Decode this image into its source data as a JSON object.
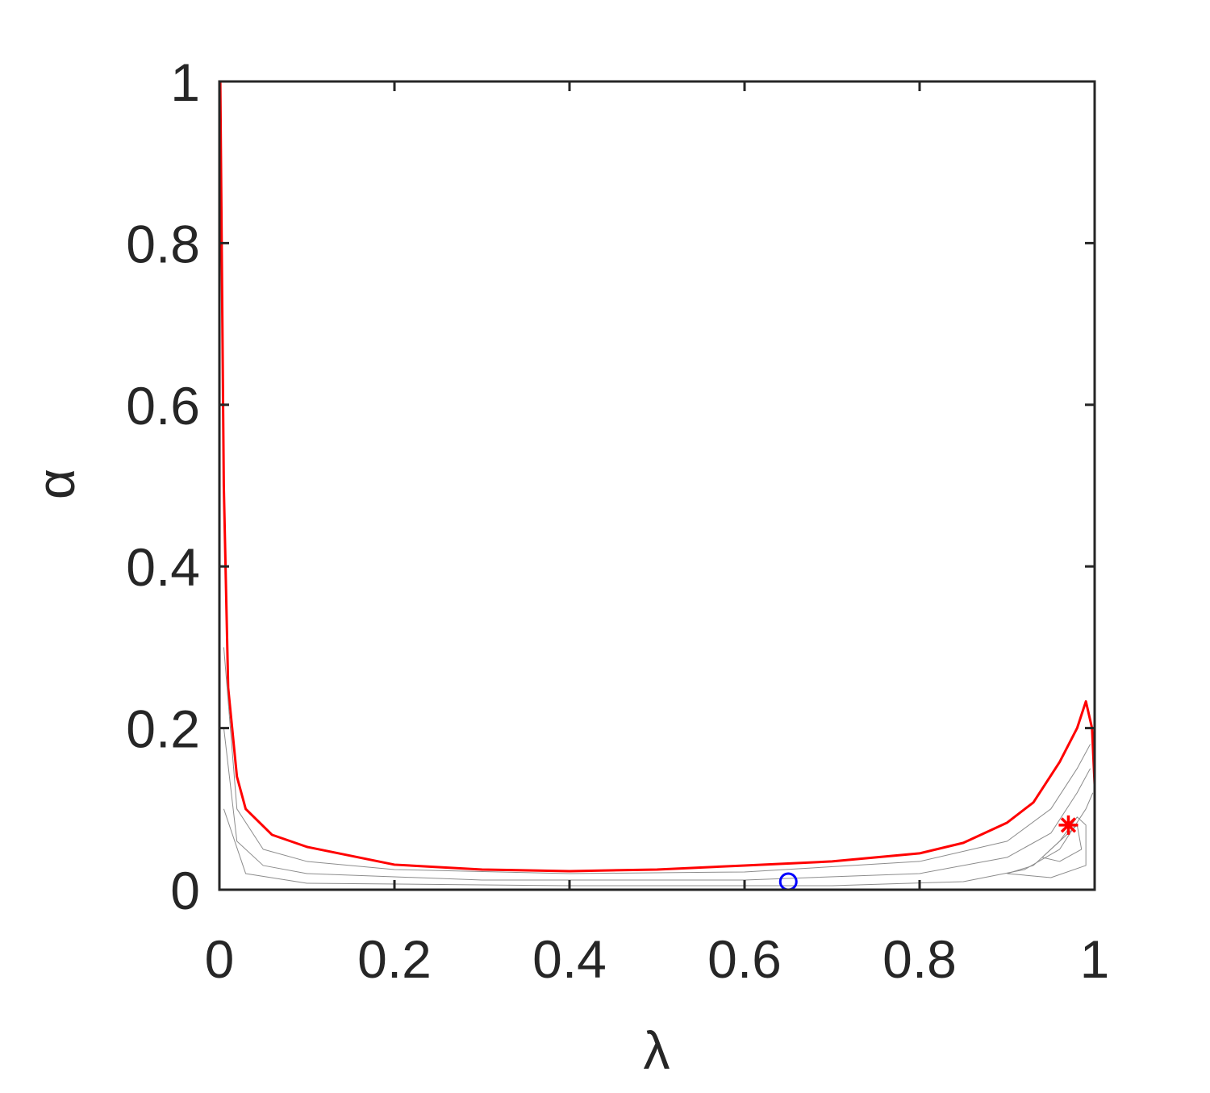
{
  "chart_data": {
    "type": "line",
    "xlabel": "λ",
    "ylabel": "α",
    "xlim": [
      0,
      1
    ],
    "ylim": [
      0,
      1
    ],
    "xticks": [
      0,
      0.2,
      0.4,
      0.6,
      0.8,
      1
    ],
    "yticks": [
      0,
      0.2,
      0.4,
      0.6,
      0.8,
      1
    ],
    "grid": false,
    "series": [
      {
        "color": "#ff0000",
        "width": 3,
        "x": [
          0.001,
          0.005,
          0.01,
          0.02,
          0.03,
          0.06,
          0.1,
          0.2,
          0.3,
          0.4,
          0.5,
          0.6,
          0.7,
          0.8,
          0.85,
          0.9,
          0.93,
          0.96,
          0.98,
          0.99,
          0.997,
          1.0
        ],
        "values": [
          1.0,
          0.5,
          0.25,
          0.14,
          0.1,
          0.068,
          0.053,
          0.031,
          0.025,
          0.023,
          0.025,
          0.03,
          0.035,
          0.045,
          0.058,
          0.083,
          0.108,
          0.158,
          0.2,
          0.233,
          0.2,
          0.13
        ]
      },
      {
        "color": "#8c8c8c",
        "width": 1,
        "x": [
          0.005,
          0.02,
          0.05,
          0.1,
          0.2,
          0.4,
          0.6,
          0.8,
          0.9,
          0.95,
          0.98,
          0.995
        ],
        "values": [
          0.3,
          0.1,
          0.05,
          0.035,
          0.025,
          0.02,
          0.022,
          0.035,
          0.06,
          0.1,
          0.15,
          0.18
        ]
      },
      {
        "color": "#8c8c8c",
        "width": 1,
        "x": [
          0.005,
          0.02,
          0.05,
          0.1,
          0.3,
          0.6,
          0.8,
          0.9,
          0.95,
          0.98,
          0.995
        ],
        "values": [
          0.2,
          0.06,
          0.03,
          0.02,
          0.012,
          0.012,
          0.02,
          0.04,
          0.07,
          0.12,
          0.15
        ]
      },
      {
        "color": "#8c8c8c",
        "width": 1,
        "x": [
          0.005,
          0.03,
          0.1,
          0.4,
          0.7,
          0.85,
          0.92,
          0.96,
          0.99,
          0.998
        ],
        "values": [
          0.1,
          0.02,
          0.008,
          0.005,
          0.005,
          0.01,
          0.025,
          0.05,
          0.1,
          0.12
        ]
      },
      {
        "color": "#8c8c8c",
        "width": 1,
        "x": [
          0.9,
          0.93,
          0.96,
          0.98,
          0.99,
          0.99,
          0.95,
          0.9
        ],
        "values": [
          0.02,
          0.03,
          0.06,
          0.09,
          0.08,
          0.03,
          0.015,
          0.02
        ]
      },
      {
        "color": "#8c8c8c",
        "width": 1,
        "x": [
          0.94,
          0.96,
          0.98,
          0.985,
          0.96,
          0.94
        ],
        "values": [
          0.04,
          0.06,
          0.08,
          0.05,
          0.035,
          0.04
        ]
      }
    ],
    "points": [
      {
        "x": 0.65,
        "y": 0.01,
        "color": "#0000ff",
        "marker": "circle"
      },
      {
        "x": 0.97,
        "y": 0.08,
        "color": "#ff0000",
        "marker": "asterisk"
      }
    ]
  }
}
